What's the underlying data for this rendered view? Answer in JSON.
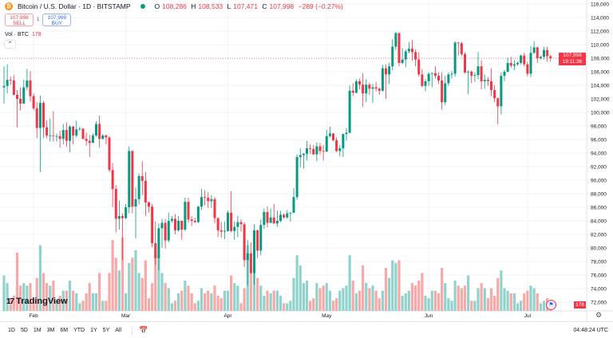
{
  "header": {
    "title": "Bitcoin / U.S. Dollar · 1D · BITSTAMP",
    "o_label": "O",
    "o": "108,286",
    "h_label": "H",
    "h": "108,533",
    "l_label": "L",
    "l": "107,471",
    "c_label": "C",
    "c": "107,998",
    "change": "−289 (−0.27%)"
  },
  "trade": {
    "sell_price": "107,998",
    "sell_label": "SELL",
    "spread": "1",
    "buy_price": "107,999",
    "buy_label": "BUY"
  },
  "volume_legend": {
    "label": "Vol · BTC",
    "value": "178"
  },
  "price_label": {
    "price": "107,998",
    "countdown": "19:11:36"
  },
  "volume_label": "178",
  "logo": "TradingView",
  "ranges": [
    "1D",
    "5D",
    "1M",
    "3M",
    "6M",
    "YTD",
    "1Y",
    "5Y",
    "All"
  ],
  "clock": "04:48:24 UTC",
  "colors": {
    "up": "#089981",
    "down": "#f23645",
    "vol_up": "#92d2cc",
    "vol_down": "#f7a9a7"
  },
  "chart_data": {
    "type": "candlestick",
    "y_ticks": [
      "116,000",
      "114,000",
      "112,000",
      "110,000",
      "108,000",
      "106,000",
      "104,000",
      "102,000",
      "100,000",
      "98,000",
      "96,000",
      "94,000",
      "92,000",
      "90,000",
      "88,000",
      "86,000",
      "84,000",
      "82,000",
      "80,000",
      "78,000",
      "76,000",
      "74,000",
      "72,000"
    ],
    "ylim": [
      71500,
      117000
    ],
    "x_ticks": [
      {
        "label": "Feb",
        "date": "02-01"
      },
      {
        "label": "Mar",
        "date": "03-01"
      },
      {
        "label": "Apr",
        "date": "04-01"
      },
      {
        "label": "May",
        "date": "05-01"
      },
      {
        "label": "Jun",
        "date": "06-01"
      },
      {
        "label": "Jul",
        "date": "07-01"
      }
    ],
    "grid": true,
    "columns": [
      "date",
      "open",
      "high",
      "low",
      "close",
      "volume"
    ],
    "candles": [
      [
        "01-23",
        103700,
        106800,
        101300,
        103900,
        1400
      ],
      [
        "01-24",
        103900,
        107100,
        102800,
        104800,
        1100
      ],
      [
        "01-25",
        104800,
        105300,
        104100,
        104700,
        500
      ],
      [
        "01-26",
        104700,
        105500,
        102500,
        102600,
        600
      ],
      [
        "01-27",
        102600,
        103300,
        97800,
        102000,
        2300
      ],
      [
        "01-28",
        102000,
        103700,
        100300,
        101300,
        1000
      ],
      [
        "01-29",
        101300,
        104800,
        101300,
        103700,
        1100
      ],
      [
        "01-30",
        103700,
        106400,
        103300,
        104700,
        1000
      ],
      [
        "01-31",
        104700,
        106100,
        101600,
        102400,
        1100
      ],
      [
        "02-01",
        102400,
        102800,
        100300,
        100600,
        500
      ],
      [
        "02-02",
        100600,
        101500,
        96200,
        97700,
        1300
      ],
      [
        "02-03",
        97700,
        102500,
        91200,
        101400,
        2600
      ],
      [
        "02-04",
        101400,
        101700,
        96200,
        97800,
        1500
      ],
      [
        "02-05",
        97800,
        98800,
        96200,
        96600,
        1100
      ],
      [
        "02-06",
        96600,
        99100,
        95700,
        96600,
        1000
      ],
      [
        "02-07",
        96600,
        100200,
        95700,
        96500,
        1200
      ],
      [
        "02-08",
        96500,
        96900,
        95700,
        96500,
        400
      ],
      [
        "02-09",
        96500,
        97300,
        94800,
        96100,
        600
      ],
      [
        "02-10",
        96100,
        98300,
        95300,
        97400,
        800
      ],
      [
        "02-11",
        97400,
        98500,
        94900,
        95800,
        800
      ],
      [
        "02-12",
        95800,
        98100,
        94100,
        97900,
        1200
      ],
      [
        "02-13",
        97900,
        98000,
        95300,
        96600,
        800
      ],
      [
        "02-14",
        96600,
        98800,
        96300,
        97500,
        700
      ],
      [
        "02-15",
        97500,
        97900,
        97300,
        97600,
        300
      ],
      [
        "02-16",
        97600,
        97700,
        96000,
        96100,
        400
      ],
      [
        "02-17",
        96100,
        97000,
        95100,
        95800,
        700
      ],
      [
        "02-18",
        95800,
        96700,
        93400,
        95500,
        1100
      ],
      [
        "02-19",
        95500,
        96900,
        95500,
        96600,
        700
      ],
      [
        "02-20",
        96600,
        98700,
        96400,
        98300,
        700
      ],
      [
        "02-21",
        98300,
        99500,
        94800,
        96100,
        1500
      ],
      [
        "02-22",
        96100,
        96800,
        96000,
        96600,
        400
      ],
      [
        "02-23",
        96600,
        96700,
        95300,
        96300,
        400
      ],
      [
        "02-24",
        96300,
        96500,
        91200,
        91500,
        1500
      ],
      [
        "02-25",
        91500,
        92500,
        86000,
        88700,
        2800
      ],
      [
        "02-26",
        88700,
        89300,
        82300,
        84300,
        2100
      ],
      [
        "02-27",
        84300,
        87000,
        82700,
        84700,
        1600
      ],
      [
        "02-28",
        84700,
        85100,
        78200,
        84400,
        2900
      ],
      [
        "03-01",
        84400,
        86500,
        84300,
        86000,
        700
      ],
      [
        "03-02",
        86000,
        95000,
        85100,
        94300,
        1900
      ],
      [
        "03-03",
        94300,
        94400,
        85100,
        86100,
        2100
      ],
      [
        "03-04",
        86100,
        88900,
        81400,
        87200,
        2400
      ],
      [
        "03-05",
        87200,
        91000,
        86400,
        90600,
        1500
      ],
      [
        "03-06",
        90600,
        92800,
        87800,
        89900,
        1300
      ],
      [
        "03-07",
        89900,
        91200,
        84700,
        86700,
        2000
      ],
      [
        "03-08",
        86700,
        86900,
        85200,
        86100,
        500
      ],
      [
        "03-09",
        86100,
        86500,
        80100,
        80700,
        1100
      ],
      [
        "03-10",
        80700,
        83900,
        77500,
        78500,
        2300
      ],
      [
        "03-11",
        78500,
        83600,
        76700,
        82900,
        2200
      ],
      [
        "03-12",
        82900,
        84300,
        80000,
        83700,
        1500
      ],
      [
        "03-13",
        83700,
        84300,
        79900,
        81100,
        1100
      ],
      [
        "03-14",
        81100,
        85200,
        80800,
        84000,
        900
      ],
      [
        "03-15",
        84000,
        84700,
        83700,
        84300,
        300
      ],
      [
        "03-16",
        84300,
        85000,
        82000,
        82600,
        400
      ],
      [
        "03-17",
        82600,
        84700,
        82400,
        84000,
        700
      ],
      [
        "03-18",
        84000,
        84000,
        81200,
        82700,
        800
      ],
      [
        "03-19",
        82700,
        87400,
        82500,
        86800,
        1200
      ],
      [
        "03-20",
        86800,
        87400,
        83700,
        84200,
        1000
      ],
      [
        "03-21",
        84200,
        84700,
        83200,
        84000,
        700
      ],
      [
        "03-22",
        84000,
        84500,
        83700,
        83800,
        300
      ],
      [
        "03-23",
        83800,
        86200,
        83700,
        86100,
        400
      ],
      [
        "03-24",
        86100,
        88700,
        85600,
        87500,
        900
      ],
      [
        "03-25",
        87500,
        88500,
        86300,
        87400,
        700
      ],
      [
        "03-26",
        87400,
        88200,
        85900,
        86900,
        800
      ],
      [
        "03-27",
        86900,
        87800,
        85900,
        87200,
        700
      ],
      [
        "03-28",
        87200,
        87500,
        83600,
        84400,
        1000
      ],
      [
        "03-29",
        84400,
        84500,
        81600,
        82600,
        600
      ],
      [
        "03-30",
        82600,
        83800,
        81500,
        82400,
        500
      ],
      [
        "03-31",
        82400,
        83900,
        81300,
        82500,
        800
      ],
      [
        "04-01",
        82500,
        85500,
        82400,
        85200,
        800
      ],
      [
        "04-02",
        85200,
        88400,
        82300,
        82500,
        1400
      ],
      [
        "04-03",
        82500,
        83900,
        81200,
        83100,
        1100
      ],
      [
        "04-04",
        83100,
        84700,
        81600,
        83800,
        1000
      ],
      [
        "04-05",
        83800,
        84200,
        82400,
        83500,
        300
      ],
      [
        "04-06",
        83500,
        83800,
        77200,
        78200,
        900
      ],
      [
        "04-07",
        78200,
        81200,
        74500,
        79200,
        2600
      ],
      [
        "04-08",
        79200,
        80800,
        76200,
        76300,
        1500
      ],
      [
        "04-09",
        76300,
        83500,
        74600,
        82600,
        2200
      ],
      [
        "04-10",
        82600,
        82700,
        78500,
        79600,
        1300
      ],
      [
        "04-11",
        79600,
        84200,
        78900,
        83400,
        1000
      ],
      [
        "04-12",
        83400,
        85800,
        82800,
        85300,
        600
      ],
      [
        "04-13",
        85300,
        86100,
        83000,
        83700,
        800
      ],
      [
        "04-14",
        83700,
        85800,
        83700,
        84500,
        700
      ],
      [
        "04-15",
        84500,
        86500,
        83600,
        83600,
        800
      ],
      [
        "04-16",
        83600,
        85500,
        83100,
        84000,
        800
      ],
      [
        "04-17",
        84000,
        85500,
        83800,
        84900,
        600
      ],
      [
        "04-18",
        84900,
        85100,
        84300,
        84500,
        300
      ],
      [
        "04-19",
        84500,
        85600,
        84300,
        85100,
        300
      ],
      [
        "04-20",
        85100,
        85300,
        83900,
        85200,
        400
      ],
      [
        "04-21",
        85200,
        88800,
        85100,
        87500,
        1300
      ],
      [
        "04-22",
        87500,
        93800,
        87100,
        93400,
        2200
      ],
      [
        "04-23",
        93400,
        94700,
        91900,
        93700,
        1800
      ],
      [
        "04-24",
        93700,
        94000,
        91700,
        93900,
        1100
      ],
      [
        "04-25",
        93900,
        95800,
        92900,
        94700,
        1200
      ],
      [
        "04-26",
        94700,
        95300,
        93900,
        94600,
        400
      ],
      [
        "04-27",
        94600,
        95200,
        93700,
        93800,
        500
      ],
      [
        "04-28",
        93800,
        95600,
        92800,
        95000,
        1100
      ],
      [
        "04-29",
        95000,
        95500,
        93800,
        94300,
        900
      ],
      [
        "04-30",
        94300,
        95200,
        92900,
        94200,
        1000
      ],
      [
        "05-01",
        94200,
        97400,
        94200,
        96500,
        1100
      ],
      [
        "05-02",
        96500,
        97900,
        96300,
        96900,
        800
      ],
      [
        "05-03",
        96900,
        96900,
        95700,
        95900,
        400
      ],
      [
        "05-04",
        95900,
        96300,
        94100,
        94300,
        500
      ],
      [
        "05-05",
        94300,
        95200,
        93500,
        94700,
        800
      ],
      [
        "05-06",
        94700,
        96900,
        93400,
        96800,
        900
      ],
      [
        "05-07",
        96800,
        97700,
        95800,
        97000,
        1000
      ],
      [
        "05-08",
        97000,
        104000,
        96900,
        103200,
        2200
      ],
      [
        "05-09",
        103200,
        104300,
        102400,
        102900,
        1200
      ],
      [
        "05-10",
        102900,
        104900,
        102800,
        104600,
        700
      ],
      [
        "05-11",
        104600,
        105000,
        103400,
        104100,
        800
      ],
      [
        "05-12",
        104100,
        105800,
        100800,
        102800,
        1800
      ],
      [
        "05-13",
        102800,
        104900,
        101500,
        104100,
        1100
      ],
      [
        "05-14",
        104100,
        104400,
        102600,
        103500,
        900
      ],
      [
        "05-15",
        103500,
        104200,
        101400,
        103700,
        1000
      ],
      [
        "05-16",
        103700,
        104500,
        103100,
        103500,
        800
      ],
      [
        "05-17",
        103500,
        103700,
        102600,
        103200,
        500
      ],
      [
        "05-18",
        103200,
        107000,
        103100,
        106500,
        800
      ],
      [
        "05-19",
        106500,
        107100,
        102000,
        105600,
        1700
      ],
      [
        "05-20",
        105600,
        107300,
        104200,
        106800,
        1300
      ],
      [
        "05-21",
        106800,
        110800,
        106200,
        109700,
        2000
      ],
      [
        "05-22",
        109700,
        111900,
        109200,
        111700,
        1900
      ],
      [
        "05-23",
        111700,
        111800,
        106800,
        107300,
        2000
      ],
      [
        "05-24",
        107300,
        109500,
        107100,
        107800,
        600
      ],
      [
        "05-25",
        107800,
        109300,
        106700,
        109000,
        700
      ],
      [
        "05-26",
        109000,
        110400,
        108700,
        109400,
        800
      ],
      [
        "05-27",
        109400,
        110700,
        107600,
        108900,
        1100
      ],
      [
        "05-28",
        108900,
        109300,
        106800,
        107800,
        1000
      ],
      [
        "05-29",
        107800,
        108900,
        105300,
        105600,
        1200
      ],
      [
        "05-30",
        105600,
        106400,
        103700,
        103900,
        1500
      ],
      [
        "05-31",
        103900,
        104900,
        103100,
        104600,
        600
      ],
      [
        "06-01",
        104600,
        105900,
        103900,
        105700,
        500
      ],
      [
        "06-02",
        105700,
        105900,
        103700,
        105800,
        800
      ],
      [
        "06-03",
        105800,
        106800,
        105000,
        105400,
        800
      ],
      [
        "06-04",
        105400,
        105900,
        104200,
        104700,
        700
      ],
      [
        "06-05",
        104700,
        105900,
        100400,
        101500,
        1700
      ],
      [
        "06-06",
        101500,
        105400,
        101100,
        104300,
        1100
      ],
      [
        "06-07",
        104300,
        105900,
        103900,
        105600,
        500
      ],
      [
        "06-08",
        105600,
        106100,
        105000,
        105700,
        400
      ],
      [
        "06-09",
        105700,
        110500,
        105300,
        110300,
        1200
      ],
      [
        "06-10",
        110300,
        110400,
        108400,
        110200,
        1000
      ],
      [
        "06-11",
        110200,
        110400,
        108300,
        108600,
        900
      ],
      [
        "06-12",
        108600,
        108900,
        105700,
        105900,
        1000
      ],
      [
        "06-13",
        105900,
        106200,
        102700,
        106000,
        1400
      ],
      [
        "06-14",
        106000,
        106200,
        104300,
        105400,
        400
      ],
      [
        "06-15",
        105400,
        105900,
        104500,
        105500,
        400
      ],
      [
        "06-16",
        105500,
        108900,
        104900,
        106800,
        900
      ],
      [
        "06-17",
        106800,
        107700,
        103400,
        104600,
        1100
      ],
      [
        "06-18",
        104600,
        105600,
        103500,
        104800,
        900
      ],
      [
        "06-19",
        104800,
        105200,
        103900,
        104600,
        500
      ],
      [
        "06-20",
        104600,
        106500,
        102400,
        103300,
        900
      ],
      [
        "06-21",
        103300,
        104000,
        101500,
        102100,
        600
      ],
      [
        "06-22",
        102100,
        102200,
        98200,
        100900,
        1300
      ],
      [
        "06-23",
        100900,
        105900,
        99700,
        105400,
        1600
      ],
      [
        "06-24",
        105400,
        106300,
        104600,
        106000,
        900
      ],
      [
        "06-25",
        106000,
        108100,
        105900,
        107300,
        800
      ],
      [
        "06-26",
        107300,
        108200,
        106600,
        106900,
        700
      ],
      [
        "06-27",
        106900,
        107700,
        106200,
        107100,
        700
      ],
      [
        "06-28",
        107100,
        107500,
        106900,
        107300,
        300
      ],
      [
        "06-29",
        107300,
        108500,
        107100,
        108400,
        400
      ],
      [
        "06-30",
        108400,
        108800,
        106800,
        107100,
        700
      ],
      [
        "07-01",
        107100,
        107500,
        105300,
        105700,
        800
      ],
      [
        "07-02",
        105700,
        109800,
        105200,
        108800,
        1000
      ],
      [
        "07-03",
        108800,
        110500,
        108600,
        109600,
        900
      ],
      [
        "07-04",
        109600,
        109700,
        107300,
        108000,
        700
      ],
      [
        "07-05",
        108000,
        108400,
        107800,
        108200,
        300
      ],
      [
        "07-06",
        108200,
        109700,
        107800,
        109200,
        400
      ],
      [
        "07-07",
        109200,
        109700,
        107500,
        108300,
        500
      ],
      [
        "07-08",
        108286,
        108533,
        107471,
        107998,
        178
      ]
    ]
  }
}
